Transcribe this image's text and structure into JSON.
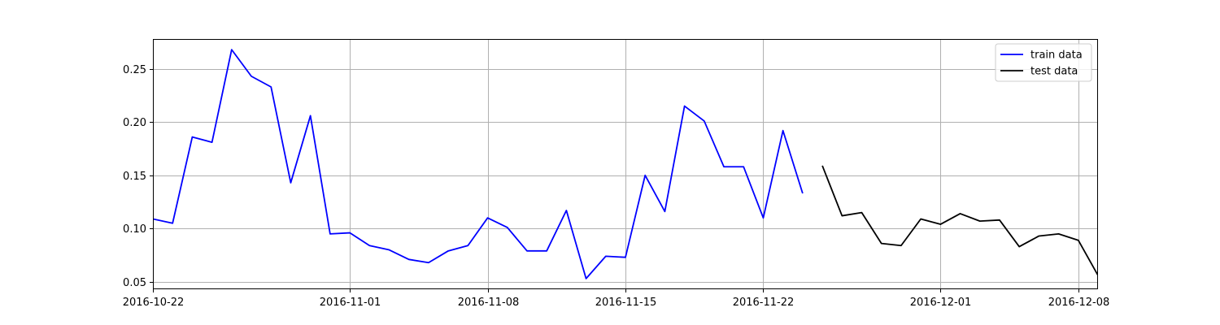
{
  "chart_data": {
    "type": "line",
    "title": "",
    "xlabel": "",
    "ylabel": "",
    "x_axis": "date",
    "xlim": [
      "2016-10-22",
      "2016-12-09"
    ],
    "ylim": [
      0.043,
      0.278
    ],
    "grid": true,
    "legend_position": "top-right",
    "x_ticks": [
      "2016-10-22",
      "2016-11-01",
      "2016-11-08",
      "2016-11-15",
      "2016-11-22",
      "2016-12-01",
      "2016-12-08"
    ],
    "y_ticks": [
      0.05,
      0.1,
      0.15,
      0.2,
      0.25
    ],
    "y_tick_labels": [
      "0.05",
      "0.10",
      "0.15",
      "0.20",
      "0.25"
    ],
    "series": [
      {
        "name": "train data",
        "color": "#0000ff",
        "x": [
          "2016-10-22",
          "2016-10-23",
          "2016-10-24",
          "2016-10-25",
          "2016-10-26",
          "2016-10-27",
          "2016-10-28",
          "2016-10-29",
          "2016-10-30",
          "2016-10-31",
          "2016-11-01",
          "2016-11-02",
          "2016-11-03",
          "2016-11-04",
          "2016-11-05",
          "2016-11-06",
          "2016-11-07",
          "2016-11-08",
          "2016-11-09",
          "2016-11-10",
          "2016-11-11",
          "2016-11-12",
          "2016-11-13",
          "2016-11-14",
          "2016-11-15",
          "2016-11-16",
          "2016-11-17",
          "2016-11-18",
          "2016-11-19",
          "2016-11-20",
          "2016-11-21",
          "2016-11-22",
          "2016-11-23",
          "2016-11-24"
        ],
        "y": [
          0.109,
          0.105,
          0.186,
          0.181,
          0.268,
          0.243,
          0.233,
          0.143,
          0.206,
          0.095,
          0.096,
          0.084,
          0.08,
          0.071,
          0.068,
          0.079,
          0.084,
          0.11,
          0.101,
          0.079,
          0.079,
          0.117,
          0.053,
          0.074,
          0.073,
          0.15,
          0.116,
          0.215,
          0.201,
          0.158,
          0.158,
          0.11,
          0.192,
          0.133
        ]
      },
      {
        "name": "test data",
        "color": "#000000",
        "x": [
          "2016-11-25",
          "2016-11-26",
          "2016-11-27",
          "2016-11-28",
          "2016-11-29",
          "2016-11-30",
          "2016-12-01",
          "2016-12-02",
          "2016-12-03",
          "2016-12-04",
          "2016-12-05",
          "2016-12-06",
          "2016-12-07",
          "2016-12-08",
          "2016-12-09"
        ],
        "y": [
          0.159,
          0.112,
          0.115,
          0.086,
          0.084,
          0.109,
          0.104,
          0.114,
          0.107,
          0.108,
          0.083,
          0.093,
          0.095,
          0.089,
          0.056
        ]
      }
    ]
  }
}
